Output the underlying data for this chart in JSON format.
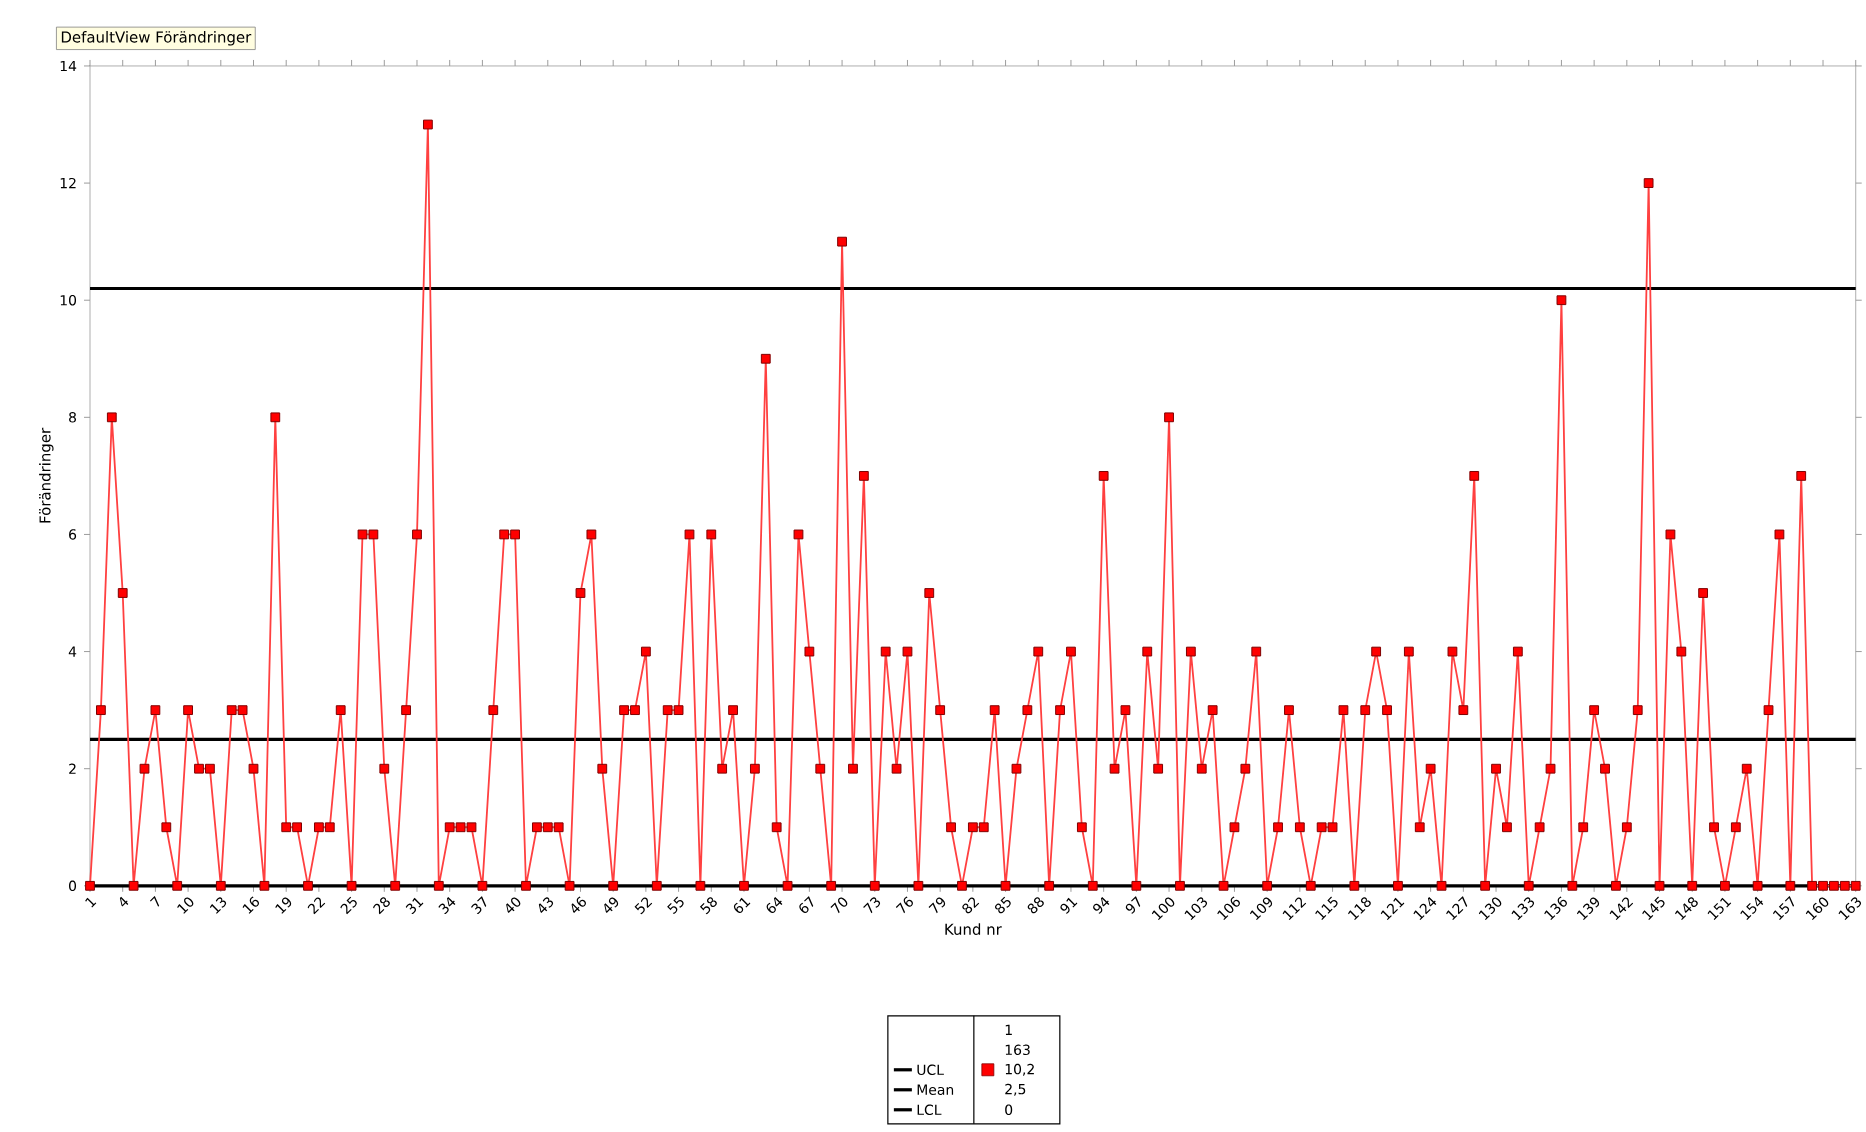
{
  "chart_data": {
    "type": "line",
    "title": "DefaultView Förändringer",
    "xlabel": "Kund nr",
    "ylabel": "Förändringer",
    "x": [
      1,
      2,
      3,
      4,
      5,
      6,
      7,
      8,
      9,
      10,
      11,
      12,
      13,
      14,
      15,
      16,
      17,
      18,
      19,
      20,
      21,
      22,
      23,
      24,
      25,
      26,
      27,
      28,
      29,
      30,
      31,
      32,
      33,
      34,
      35,
      36,
      37,
      38,
      39,
      40,
      41,
      42,
      43,
      44,
      45,
      46,
      47,
      48,
      49,
      50,
      51,
      52,
      53,
      54,
      55,
      56,
      57,
      58,
      59,
      60,
      61,
      62,
      63,
      64,
      65,
      66,
      67,
      68,
      69,
      70,
      71,
      72,
      73,
      74,
      75,
      76,
      77,
      78,
      79,
      80,
      81,
      82,
      83,
      84,
      85,
      86,
      87,
      88,
      89,
      90,
      91,
      92,
      93,
      94,
      95,
      96,
      97,
      98,
      99,
      100,
      101,
      102,
      103,
      104,
      105,
      106,
      107,
      108,
      109,
      110,
      111,
      112,
      113,
      114,
      115,
      116,
      117,
      118,
      119,
      120,
      121,
      122,
      123,
      124,
      125,
      126,
      127,
      128,
      129,
      130,
      131,
      132,
      133,
      134,
      135,
      136,
      137,
      138,
      139,
      140,
      141,
      142,
      143,
      144,
      145,
      146,
      147,
      148,
      149,
      150,
      151,
      152,
      153,
      154,
      155,
      156,
      157,
      158,
      159,
      160,
      161,
      162,
      163
    ],
    "series": [
      {
        "color": "#ff0000",
        "values": [
          0,
          3,
          8,
          5,
          0,
          2,
          3,
          1,
          0,
          3,
          2,
          2,
          0,
          3,
          3,
          2,
          0,
          8,
          1,
          1,
          0,
          1,
          1,
          3,
          0,
          6,
          6,
          2,
          0,
          3,
          6,
          13,
          0,
          1,
          1,
          1,
          0,
          3,
          6,
          6,
          0,
          1,
          1,
          1,
          0,
          5,
          6,
          2,
          0,
          3,
          3,
          4,
          0,
          3,
          3,
          6,
          0,
          6,
          2,
          3,
          0,
          2,
          9,
          1,
          0,
          6,
          4,
          2,
          0,
          11,
          2,
          7,
          0,
          4,
          2,
          4,
          0,
          5,
          3,
          1,
          0,
          1,
          1,
          3,
          0,
          2,
          3,
          4,
          0,
          3,
          4,
          1,
          0,
          7,
          2,
          3,
          0,
          4,
          2,
          8,
          0,
          4,
          2,
          3,
          0,
          1,
          2,
          4,
          0,
          1,
          3,
          1,
          0,
          1,
          1,
          3,
          0,
          3,
          4,
          3,
          0,
          4,
          1,
          2,
          0,
          4,
          3,
          7,
          0,
          2,
          1,
          4,
          0,
          1,
          2,
          10,
          0,
          1,
          3,
          2,
          0,
          1,
          3,
          12,
          0,
          6,
          4,
          0,
          5,
          1,
          0,
          1,
          2,
          0,
          3,
          6,
          0,
          7,
          0,
          0,
          0,
          0,
          0
        ]
      }
    ],
    "xlim": [
      1,
      163
    ],
    "ylim": [
      0,
      14
    ],
    "xticks": [
      1,
      4,
      7,
      10,
      13,
      16,
      19,
      22,
      25,
      28,
      31,
      34,
      37,
      40,
      43,
      46,
      49,
      52,
      55,
      58,
      61,
      64,
      67,
      70,
      73,
      76,
      79,
      82,
      85,
      88,
      91,
      94,
      97,
      100,
      103,
      106,
      109,
      112,
      115,
      118,
      121,
      124,
      127,
      130,
      133,
      136,
      139,
      142,
      145,
      148,
      151,
      154,
      157,
      160,
      163
    ],
    "yticks": [
      0,
      2,
      4,
      6,
      8,
      10,
      12,
      14
    ],
    "marker": "square",
    "grid": false,
    "legend": "bottom",
    "ref_lines": [
      {
        "axis": "y",
        "value": 10.2,
        "label": "UCL",
        "color": "#000000"
      },
      {
        "axis": "y",
        "value": 2.5,
        "label": "Mean",
        "color": "#000000"
      },
      {
        "axis": "y",
        "value": 0,
        "label": "LCL",
        "color": "#000000"
      }
    ],
    "annotations": [
      "1",
      "163",
      "10,2",
      "2,5",
      "0"
    ]
  }
}
